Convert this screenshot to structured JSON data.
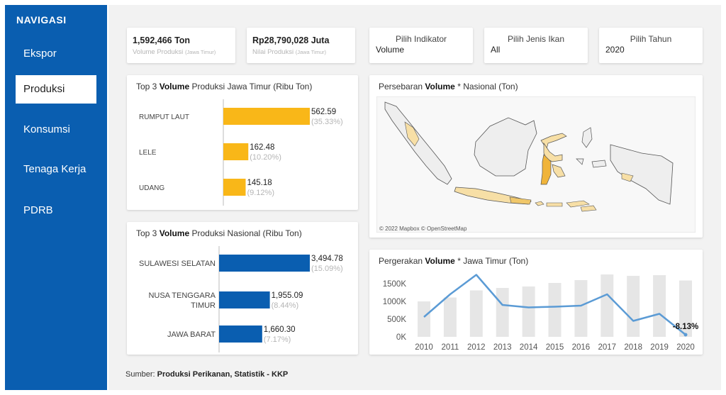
{
  "nav": {
    "title": "NAVIGASI",
    "items": [
      {
        "label": "Ekspor",
        "active": false
      },
      {
        "label": "Produksi",
        "active": true
      },
      {
        "label": "Konsumsi",
        "active": false
      },
      {
        "label": "Tenaga Kerja",
        "active": false
      },
      {
        "label": "PDRB",
        "active": false
      }
    ]
  },
  "kpi": {
    "volume": {
      "value": "1,592,466 Ton",
      "label": "Volume Produksi",
      "region": "(Jawa Timur)"
    },
    "nilai": {
      "value": "Rp28,790,028 Juta",
      "label": "Nilai Produksi",
      "region": "(Jawa Timur)"
    }
  },
  "filters": {
    "indikator": {
      "label": "Pilih Indikator",
      "value": "Volume"
    },
    "jenis_ikan": {
      "label": "Pilih Jenis Ikan",
      "value": "All"
    },
    "tahun": {
      "label": "Pilih Tahun",
      "value": "2020"
    }
  },
  "colors": {
    "sidebar": "#0a5eb0",
    "bar_jatim": "#f9b718",
    "bar_nasional": "#0a5eb0",
    "line": "#5b9bd5",
    "bar_bg": "#e6e6e6",
    "map_land": "#eeeeee",
    "map_highlight": "#f0b43a",
    "map_light": "#f7dfa6"
  },
  "top3_jatim": {
    "title_pre": "Top 3",
    "title_bold": "Volume",
    "title_post": "Produksi Jawa Timur (Ribu Ton)",
    "chart_data": {
      "type": "bar",
      "orientation": "horizontal",
      "categories": [
        "RUMPUT LAUT",
        "LELE",
        "UDANG"
      ],
      "values": [
        562.59,
        162.48,
        145.18
      ],
      "value_labels": [
        "562.59",
        "162.48",
        "145.18"
      ],
      "percent_labels": [
        "(35.33%)",
        "(10.20%)",
        "(9.12%)"
      ],
      "xlim": [
        0,
        562.59
      ]
    }
  },
  "top3_nasional": {
    "title_pre": "Top 3",
    "title_bold": "Volume",
    "title_post": "Produksi Nasional (Ribu Ton)",
    "chart_data": {
      "type": "bar",
      "orientation": "horizontal",
      "categories": [
        [
          "SULAWESI SELATAN"
        ],
        [
          "NUSA TENGGARA",
          "TIMUR"
        ],
        [
          "JAWA BARAT"
        ]
      ],
      "values": [
        3494.78,
        1955.09,
        1660.3
      ],
      "value_labels": [
        "3,494.78",
        "1,955.09",
        "1,660.30"
      ],
      "percent_labels": [
        "(15.09%)",
        "(8.44%)",
        "(7.17%)"
      ],
      "xlim": [
        0,
        3494.78
      ]
    }
  },
  "map": {
    "title_pre": "Persebaran",
    "title_bold": "Volume",
    "title_post": "* Nasional (Ton)",
    "attribution": "© 2022 Mapbox © OpenStreetMap"
  },
  "trend": {
    "title_pre": "Pergerakan",
    "title_bold": "Volume",
    "title_post": "* Jawa Timur (Ton)",
    "chart_data": {
      "type": "line",
      "x": [
        "2010",
        "2011",
        "2012",
        "2013",
        "2014",
        "2015",
        "2016",
        "2017",
        "2018",
        "2019",
        "2020"
      ],
      "line_values": [
        560,
        1200,
        1750,
        900,
        830,
        850,
        880,
        1200,
        450,
        650,
        60
      ],
      "bar_values": [
        1000,
        1110,
        1310,
        1380,
        1420,
        1520,
        1600,
        1760,
        1720,
        1740,
        1590
      ],
      "yticks": [
        "0K",
        "500K",
        "1000K",
        "1500K"
      ],
      "ylim": [
        0,
        1900
      ],
      "annotation": "-8.13%"
    }
  },
  "source": {
    "prefix": "Sumber:",
    "text": "Produksi Perikanan, Statistik - KKP"
  }
}
